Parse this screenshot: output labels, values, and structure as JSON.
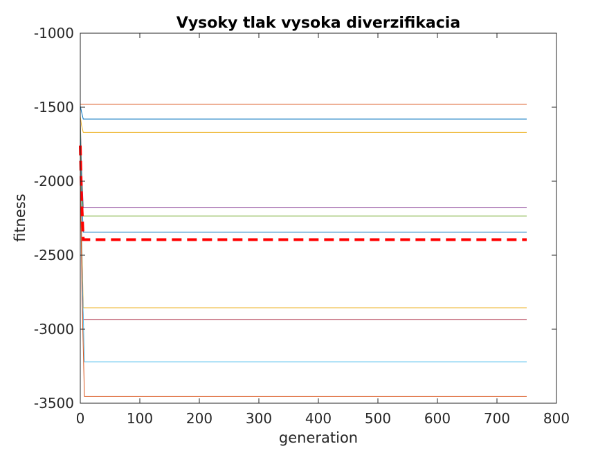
{
  "chart_data": {
    "type": "line",
    "title": "Vysoky tlak vysoka diverzifikacia",
    "xlabel": "generation",
    "ylabel": "fitness",
    "xlim": [
      0,
      800
    ],
    "ylim": [
      -3500,
      -1000
    ],
    "xticks": [
      0,
      100,
      200,
      300,
      400,
      500,
      600,
      700,
      800
    ],
    "yticks": [
      -1000,
      -1500,
      -2000,
      -2500,
      -3000,
      -3500
    ],
    "xtick_labels": [
      "0",
      "100",
      "200",
      "300",
      "400",
      "500",
      "600",
      "700",
      "800"
    ],
    "ytick_labels": [
      "-1000",
      "-1500",
      "-2000",
      "-2500",
      "-3000",
      "-3500"
    ],
    "grid": false,
    "legend": "none",
    "series": [
      {
        "color": "#D95319",
        "dashed": false,
        "x": [
          0,
          2,
          5,
          750
        ],
        "y": [
          -1480,
          -1480,
          -1480,
          -1480
        ]
      },
      {
        "color": "#0072BD",
        "dashed": false,
        "x": [
          0,
          2,
          5,
          750
        ],
        "y": [
          -1490,
          -1530,
          -1580,
          -1580
        ]
      },
      {
        "color": "#EDB120",
        "dashed": false,
        "x": [
          0,
          2,
          5,
          750
        ],
        "y": [
          -1560,
          -1620,
          -1670,
          -1670
        ]
      },
      {
        "color": "#7E2F8E",
        "dashed": false,
        "x": [
          0,
          2,
          5,
          750
        ],
        "y": [
          -1570,
          -1900,
          -2180,
          -2180
        ]
      },
      {
        "color": "#77AC30",
        "dashed": false,
        "x": [
          0,
          2,
          5,
          750
        ],
        "y": [
          -1600,
          -1950,
          -2235,
          -2235
        ]
      },
      {
        "color": "#0072BD",
        "dashed": false,
        "x": [
          0,
          2,
          5,
          750
        ],
        "y": [
          -1650,
          -2050,
          -2345,
          -2345
        ]
      },
      {
        "color": "#EDB120",
        "dashed": false,
        "x": [
          0,
          2,
          5,
          750
        ],
        "y": [
          -1750,
          -2300,
          -2855,
          -2855
        ]
      },
      {
        "color": "#A2142F",
        "dashed": false,
        "x": [
          0,
          2,
          5,
          750
        ],
        "y": [
          -1800,
          -2400,
          -2935,
          -2935
        ]
      },
      {
        "color": "#4DBEEE",
        "dashed": false,
        "x": [
          0,
          3,
          7,
          750
        ],
        "y": [
          -1850,
          -2600,
          -3220,
          -3220
        ]
      },
      {
        "color": "#D95319",
        "dashed": false,
        "x": [
          0,
          3,
          7,
          750
        ],
        "y": [
          -1900,
          -2800,
          -3455,
          -3455
        ]
      },
      {
        "color": "#FF0000",
        "dashed": true,
        "x": [
          0,
          2,
          5,
          750
        ],
        "y": [
          -1760,
          -2100,
          -2395,
          -2395
        ]
      }
    ]
  }
}
